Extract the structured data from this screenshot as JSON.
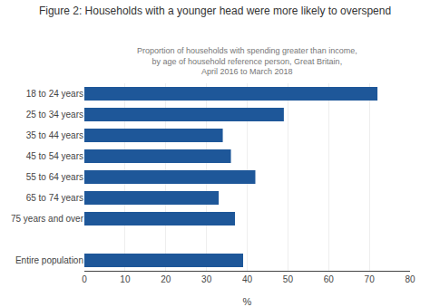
{
  "chart_data": {
    "type": "bar",
    "orientation": "horizontal",
    "title": "Figure 2: Households with a younger head were more likely to overspend",
    "subtitle": [
      "Proportion of households with spending greater than income, by age of household reference person, Great Britain,",
      "April 2016 to March 2018"
    ],
    "categories": [
      "18 to 24 years",
      "25 to 34 years",
      "35 to 44 years",
      "45 to 54 years",
      "55 to 64 years",
      "65 to 74 years",
      "75 years and over",
      null,
      "Entire population"
    ],
    "values": [
      72,
      49,
      34,
      36,
      42,
      33,
      37,
      null,
      39
    ],
    "color": "#1e5799",
    "xlabel": "%",
    "xlim": [
      0,
      80
    ],
    "xticks": [
      0,
      10,
      20,
      30,
      40,
      50,
      60,
      70,
      80
    ],
    "grid": true
  }
}
